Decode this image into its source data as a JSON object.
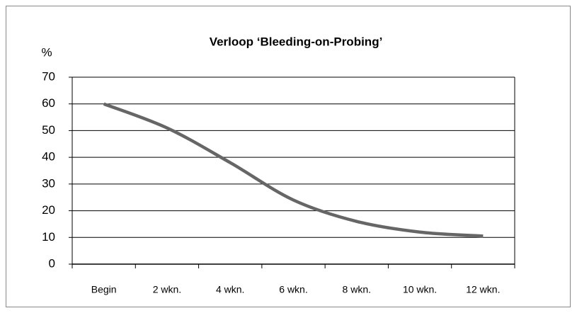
{
  "chart_data": {
    "type": "line",
    "title": "Verloop ‘Bleeding-on-Probing’",
    "y_label": "%",
    "categories": [
      "Begin",
      "2 wkn.",
      "4 wkn.",
      "6 wkn.",
      "8 wkn.",
      "10 wkn.",
      "12 wkn."
    ],
    "series": [
      {
        "name": "Bleeding-on-Probing",
        "color": "#666666",
        "values": [
          60,
          51,
          38,
          24,
          16,
          12,
          10.5
        ]
      }
    ],
    "ylim": [
      0,
      70
    ],
    "yticks": [
      0,
      10,
      20,
      30,
      40,
      50,
      60,
      70
    ],
    "grid": true,
    "smooth": true
  }
}
